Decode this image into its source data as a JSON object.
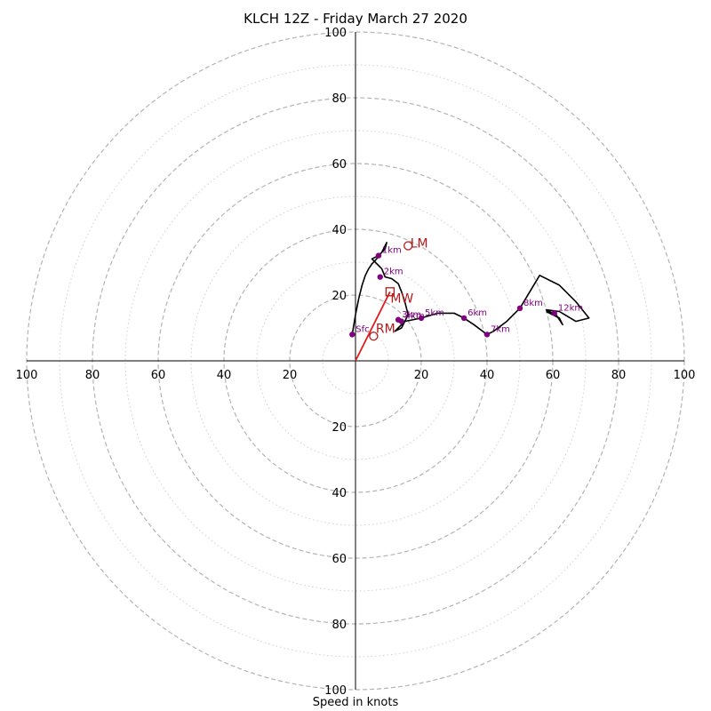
{
  "chart_data": {
    "type": "scatter",
    "title": "KLCH 12Z - Friday March 27 2020",
    "xlabel": "Speed in knots",
    "axis_range": [
      -100,
      100
    ],
    "ring_major": [
      20,
      40,
      60,
      80,
      100
    ],
    "ring_minor": [
      10,
      30,
      50,
      70,
      90
    ],
    "tick_labels": [
      "100",
      "80",
      "60",
      "40",
      "20",
      "20",
      "40",
      "60",
      "80",
      "100"
    ],
    "hodograph_trace": [
      [
        -1,
        8
      ],
      [
        0,
        14
      ],
      [
        1,
        19
      ],
      [
        2,
        23
      ],
      [
        3,
        26
      ],
      [
        4,
        28
      ],
      [
        5,
        29.5
      ],
      [
        6,
        30.5
      ],
      [
        8,
        33
      ],
      [
        9,
        35
      ],
      [
        9.5,
        36
      ],
      [
        9,
        34
      ],
      [
        7,
        32
      ],
      [
        5,
        31
      ],
      [
        6,
        30
      ],
      [
        8,
        28
      ],
      [
        9,
        25.5
      ],
      [
        11,
        25
      ],
      [
        13,
        23.5
      ],
      [
        14,
        21
      ],
      [
        15,
        18
      ],
      [
        16,
        14
      ],
      [
        15,
        12
      ],
      [
        14,
        10
      ],
      [
        12,
        9
      ],
      [
        13,
        10
      ],
      [
        15,
        12
      ],
      [
        20,
        13
      ],
      [
        25,
        14.5
      ],
      [
        30,
        14.5
      ],
      [
        33,
        13
      ],
      [
        36,
        11
      ],
      [
        40,
        8
      ],
      [
        42,
        9
      ],
      [
        46,
        12
      ],
      [
        50,
        16
      ],
      [
        53,
        21
      ],
      [
        56,
        26
      ],
      [
        62,
        23
      ],
      [
        67,
        18
      ],
      [
        71,
        13
      ],
      [
        67,
        12
      ],
      [
        62,
        15
      ],
      [
        58,
        15.5
      ],
      [
        61,
        14
      ],
      [
        63,
        11
      ],
      [
        62,
        13
      ],
      [
        58,
        15
      ]
    ],
    "height_points": [
      {
        "label": "Sfc",
        "x": -1,
        "y": 8
      },
      {
        "label": "1km",
        "x": 7,
        "y": 32
      },
      {
        "label": "2km",
        "x": 7.5,
        "y": 25.5
      },
      {
        "label": "3km",
        "x": 13,
        "y": 12.5
      },
      {
        "label": "4km",
        "x": 14,
        "y": 12
      },
      {
        "label": "5km",
        "x": 20,
        "y": 13
      },
      {
        "label": "6km",
        "x": 33,
        "y": 13
      },
      {
        "label": "7km",
        "x": 40,
        "y": 8
      },
      {
        "label": "8km",
        "x": 50,
        "y": 16
      },
      {
        "label": "12km",
        "x": 60.5,
        "y": 14.5
      }
    ],
    "storm_motion": {
      "rm": {
        "label": "RM",
        "x": 5.5,
        "y": 7.5
      },
      "lm": {
        "label": "LM",
        "x": 16,
        "y": 35
      },
      "mw": {
        "label": "MW",
        "x": 10.5,
        "y": 21
      }
    },
    "colors": {
      "trace": "#000000",
      "points": "#800080",
      "motion": "#b31b1b",
      "shear_vector": "#e11d1d",
      "rings": "#b4b4b4"
    }
  }
}
